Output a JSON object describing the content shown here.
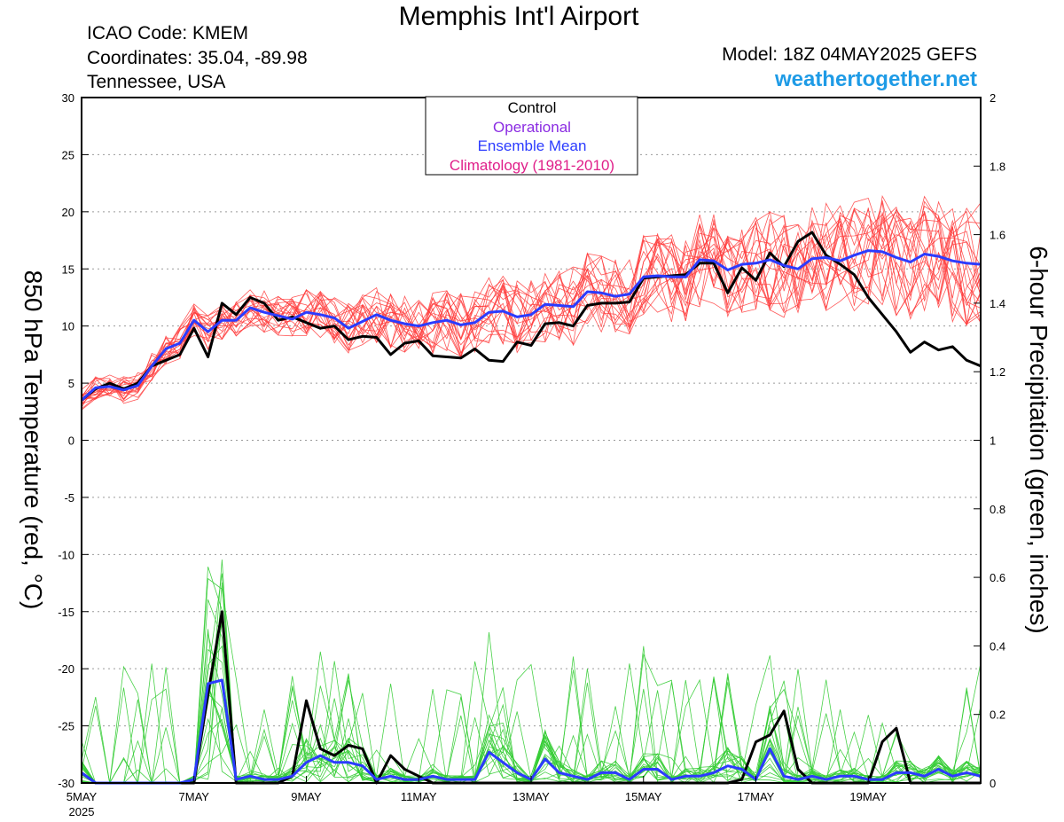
{
  "header": {
    "title": "Memphis Int'l Airport",
    "icao": "ICAO Code: KMEM",
    "coords": "Coordinates: 35.04, -89.98",
    "region": "Tennessee, USA",
    "model": "Model: 18Z 04MAY2025 GEFS",
    "brand": "weathertogether.net"
  },
  "colors": {
    "members_temp": "#ff3b3b",
    "members_precip": "#33cc33",
    "control": "#000000",
    "operational": "#8a2be2",
    "ensemble_mean": "#2b3bff",
    "climatology": "#e0208a",
    "brand": "#1e9be6"
  },
  "chart_data": {
    "type": "line",
    "ylabel": "850 hPa Temperature (red, °C)",
    "y2label": "6-hour Precipitation (green, inches)",
    "ylim": [
      -30,
      30
    ],
    "y2lim": [
      0,
      2
    ],
    "yticks": [
      "30",
      "25",
      "20",
      "15",
      "10",
      "5",
      "0",
      "-5",
      "-10",
      "-15",
      "-20",
      "-25",
      "-30"
    ],
    "y2ticks": [
      "2",
      "1.8",
      "1.6",
      "1.4",
      "1.2",
      "1",
      "0.8",
      "0.6",
      "0.4",
      "0.2",
      "0"
    ],
    "xlim": [
      0,
      64
    ],
    "xticks": [
      {
        "t": 0,
        "label": "5MAY",
        "sub": "2025"
      },
      {
        "t": 8,
        "label": "7MAY",
        "sub": ""
      },
      {
        "t": 16,
        "label": "9MAY",
        "sub": ""
      },
      {
        "t": 24,
        "label": "11MAY",
        "sub": ""
      },
      {
        "t": 32,
        "label": "13MAY",
        "sub": ""
      },
      {
        "t": 40,
        "label": "15MAY",
        "sub": ""
      },
      {
        "t": 48,
        "label": "17MAY",
        "sub": ""
      },
      {
        "t": 56,
        "label": "19MAY",
        "sub": ""
      }
    ],
    "grid": true,
    "legend_position": "top-center",
    "legend": [
      "Control",
      "Operational",
      "Ensemble Mean",
      "Climatology (1981-2010)"
    ],
    "series": [
      {
        "name": "Control",
        "kind": "temperature",
        "values": [
          3.5,
          4.5,
          5,
          4.5,
          5,
          6.5,
          7,
          7.5,
          9.8,
          7.3,
          12,
          11,
          12.5,
          12,
          10.5,
          10.8,
          10.3,
          9.8,
          10,
          8.8,
          9.1,
          9,
          7.5,
          8.5,
          8.7,
          7.4,
          7.3,
          7.2,
          8,
          7,
          6.9,
          8.6,
          8.3,
          10.2,
          10.3,
          10,
          11.8,
          12,
          12,
          12.1,
          14.2,
          14.3,
          14.4,
          14.5,
          15.5,
          15.5,
          12.9,
          15.1,
          14,
          16.4,
          15.2,
          17.4,
          18.2,
          16.2,
          15.4,
          14.5,
          12.5,
          11,
          9.5,
          7.7,
          8.6,
          7.9,
          8.2,
          7,
          6.5
        ]
      },
      {
        "name": "Ensemble Mean",
        "kind": "temperature",
        "values": [
          3.5,
          4.6,
          4.7,
          4.4,
          4.8,
          6.5,
          8,
          8.5,
          10.5,
          9.5,
          10.5,
          10.5,
          11.6,
          11.2,
          10.9,
          10.6,
          11.2,
          11,
          10.7,
          9.8,
          10.4,
          11,
          10.5,
          10.2,
          10,
          10.3,
          10.5,
          10.1,
          10.3,
          11.2,
          11.3,
          10.8,
          11,
          11.9,
          11.8,
          11.7,
          13,
          12.9,
          12.6,
          12.8,
          14.3,
          14.4,
          14.3,
          14.3,
          15.8,
          15.7,
          14.9,
          15.4,
          15.5,
          15.8,
          15.3,
          15,
          15.9,
          16,
          15.7,
          16.2,
          16.6,
          16.5,
          16,
          15.6,
          16.3,
          16.1,
          15.7,
          15.5,
          15.4
        ]
      },
      {
        "name": "Control",
        "kind": "precipitation",
        "values": [
          0.03,
          0,
          0,
          0,
          0,
          0,
          0,
          0,
          0,
          0.26,
          0.5,
          0,
          0,
          0,
          0,
          0.02,
          0.24,
          0.1,
          0.08,
          0.11,
          0.1,
          0,
          0.08,
          0.04,
          0.02,
          0,
          0,
          0,
          0,
          0,
          0,
          0,
          0,
          0,
          0,
          0,
          0,
          0,
          0,
          0,
          0,
          0,
          0,
          0,
          0,
          0,
          0,
          0.01,
          0.12,
          0.14,
          0.21,
          0.04,
          0,
          0,
          0,
          0,
          0,
          0.12,
          0.16,
          0,
          0,
          0,
          0,
          0,
          0
        ]
      },
      {
        "name": "Ensemble Mean",
        "kind": "precipitation",
        "values": [
          0.03,
          0,
          0,
          0,
          0,
          0,
          0,
          0,
          0.01,
          0.29,
          0.3,
          0.01,
          0.02,
          0.01,
          0.01,
          0.02,
          0.06,
          0.08,
          0.06,
          0.06,
          0.05,
          0.01,
          0.02,
          0.01,
          0.01,
          0.02,
          0.01,
          0.01,
          0.01,
          0.09,
          0.06,
          0.03,
          0.01,
          0.07,
          0.03,
          0.02,
          0.01,
          0.03,
          0.03,
          0.01,
          0.04,
          0.04,
          0.01,
          0.02,
          0.02,
          0.03,
          0.05,
          0.04,
          0.01,
          0.1,
          0.02,
          0.01,
          0.02,
          0.01,
          0.02,
          0.02,
          0.01,
          0.01,
          0.03,
          0.03,
          0.02,
          0.04,
          0.02,
          0.03,
          0.02
        ]
      }
    ]
  }
}
